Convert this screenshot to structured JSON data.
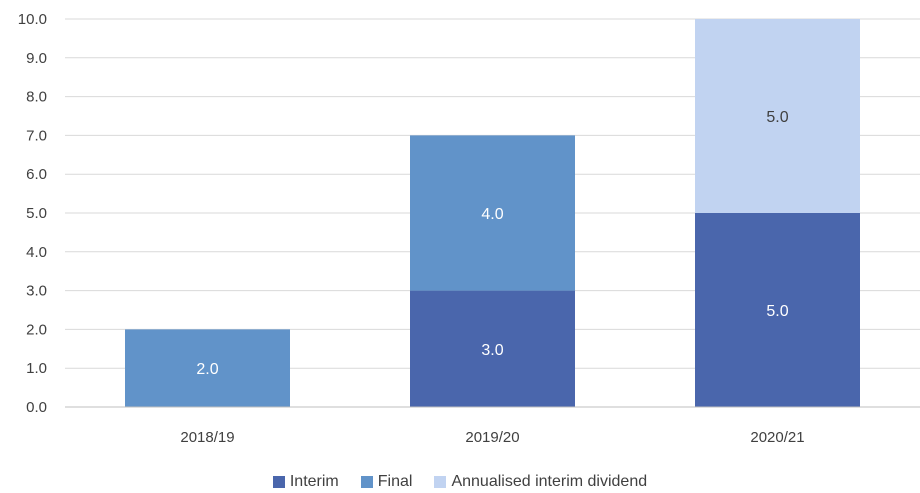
{
  "chart_data": {
    "type": "bar",
    "stacked": true,
    "title": "",
    "xlabel": "",
    "ylabel": "",
    "categories": [
      "2018/19",
      "2019/20",
      "2020/21"
    ],
    "ylim": [
      0,
      10
    ],
    "yticks": [
      "0.0",
      "1.0",
      "2.0",
      "3.0",
      "4.0",
      "5.0",
      "6.0",
      "7.0",
      "8.0",
      "9.0",
      "10.0"
    ],
    "grid": true,
    "legend_position": "bottom",
    "series": [
      {
        "name": "Interim",
        "color": "#4a66ac",
        "label_color": "#ffffff",
        "values": [
          0,
          3.0,
          5.0
        ],
        "labels": [
          "",
          "3.0",
          "5.0"
        ]
      },
      {
        "name": "Final",
        "color": "#6193c9",
        "label_color": "#ffffff",
        "values": [
          2.0,
          4.0,
          0
        ],
        "labels": [
          "2.0",
          "4.0",
          ""
        ]
      },
      {
        "name": "Annualised interim dividend",
        "color": "#c1d3f1",
        "label_color": "#404040",
        "values": [
          0,
          0,
          5.0
        ],
        "labels": [
          "",
          "",
          "5.0"
        ]
      }
    ]
  }
}
